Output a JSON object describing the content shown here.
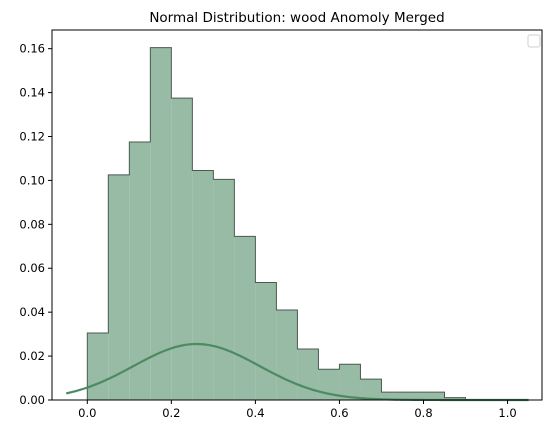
{
  "chart_data": {
    "type": "histogram",
    "title": "Normal Distribution: wood Anomoly Merged",
    "xlabel": "",
    "ylabel": "",
    "xlim": [
      -0.084,
      1.082
    ],
    "ylim": [
      0,
      0.1685
    ],
    "x_ticks": [
      0.0,
      0.2,
      0.4,
      0.6,
      0.8,
      1.0
    ],
    "x_tick_labels": [
      "0.0",
      "0.2",
      "0.4",
      "0.6",
      "0.8",
      "1.0"
    ],
    "y_ticks": [
      0.0,
      0.02,
      0.04,
      0.06,
      0.08,
      0.1,
      0.12,
      0.14,
      0.16
    ],
    "y_tick_labels": [
      "0.00",
      "0.02",
      "0.04",
      "0.06",
      "0.08",
      "0.10",
      "0.12",
      "0.14",
      "0.16"
    ],
    "bins": {
      "edges": [
        0.0,
        0.05,
        0.1,
        0.15,
        0.2,
        0.25,
        0.3,
        0.35,
        0.4,
        0.45,
        0.5,
        0.55,
        0.6,
        0.65,
        0.7,
        0.75,
        0.8,
        0.85,
        0.9
      ],
      "values": [
        0.0305,
        0.1025,
        0.1175,
        0.1605,
        0.1375,
        0.1045,
        0.1005,
        0.0745,
        0.0535,
        0.041,
        0.0232,
        0.014,
        0.0163,
        0.0095,
        0.0036,
        0.0036,
        0.0036,
        0.0011
      ]
    },
    "normal_curve": {
      "x_range": [
        -0.05,
        1.05
      ],
      "mean": 0.26,
      "std": 0.15,
      "peak": 0.0255
    },
    "legend": "top-right, empty",
    "grid": false,
    "colors": {
      "histogram_fill": "#97bba5",
      "histogram_edge": "#4b5a50",
      "curve": "#4d8a62"
    }
  }
}
